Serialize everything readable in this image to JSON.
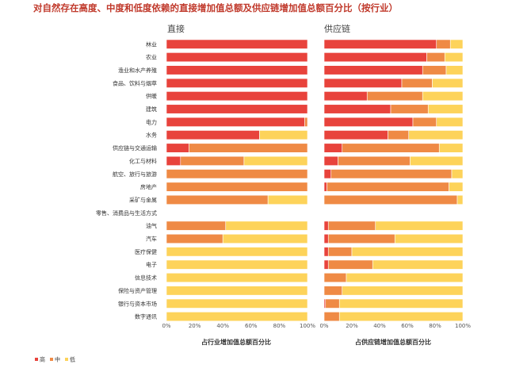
{
  "chart_data": {
    "type": "bar",
    "stacked": true,
    "orientation": "horizontal",
    "title": "对自然存在高度、中度和低度依赖的直接增加值总额及供应链增加值总额百分比（按行业）",
    "categories": [
      "林业",
      "农业",
      "渔业和水产养殖",
      "食品、饮料与烟草",
      "供暖",
      "建筑",
      "电力",
      "水务",
      "供应链与交通运输",
      "化工与材料",
      "航空、旅行与旅游",
      "房地产",
      "采矿与金属",
      "零售、消费品与生活方式",
      "油气",
      "汽车",
      "医疗保健",
      "电子",
      "信息技术",
      "保险与资产管理",
      "银行与资本市场",
      "数字通讯"
    ],
    "legend": [
      "高",
      "中",
      "低"
    ],
    "colors": {
      "高": "#e8433c",
      "中": "#ef8a45",
      "低": "#fdd35a"
    },
    "xlim": [
      0,
      100
    ],
    "ticks": [
      "0%",
      "20%",
      "40%",
      "60%",
      "80%",
      "100%"
    ],
    "panels": [
      {
        "title": "直接",
        "xlabel": "占行业增加值总额百分比",
        "series": [
          {
            "name": "高",
            "values": [
              100,
              100,
              100,
              100,
              100,
              100,
              98,
              66,
              16,
              10,
              0,
              0,
              0,
              0,
              0,
              0,
              0,
              0,
              0,
              0,
              0,
              0
            ]
          },
          {
            "name": "中",
            "values": [
              0,
              0,
              0,
              0,
              0,
              0,
              2,
              0,
              84,
              45,
              100,
              100,
              72,
              0,
              42,
              40,
              0,
              0,
              0,
              0,
              0,
              0
            ]
          },
          {
            "name": "低",
            "values": [
              0,
              0,
              0,
              0,
              0,
              0,
              0,
              34,
              0,
              45,
              0,
              0,
              28,
              0,
              58,
              60,
              100,
              100,
              100,
              100,
              100,
              100
            ]
          }
        ]
      },
      {
        "title": "供应链",
        "xlabel": "占供应链增加值总额百分比",
        "series": [
          {
            "name": "高",
            "values": [
              81,
              74,
              71,
              56,
              31,
              48,
              64,
              46,
              13,
              10,
              5,
              2,
              0,
              0,
              3,
              3,
              3,
              3,
              0,
              0,
              1,
              0
            ]
          },
          {
            "name": "中",
            "values": [
              10,
              13,
              17,
              22,
              40,
              27,
              17,
              15,
              70,
              52,
              87,
              88,
              96,
              0,
              34,
              48,
              17,
              32,
              16,
              13,
              10,
              11
            ]
          },
          {
            "name": "低",
            "values": [
              9,
              13,
              12,
              22,
              29,
              25,
              19,
              39,
              17,
              38,
              8,
              10,
              4,
              0,
              63,
              49,
              80,
              65,
              84,
              87,
              89,
              89
            ]
          }
        ]
      }
    ]
  }
}
